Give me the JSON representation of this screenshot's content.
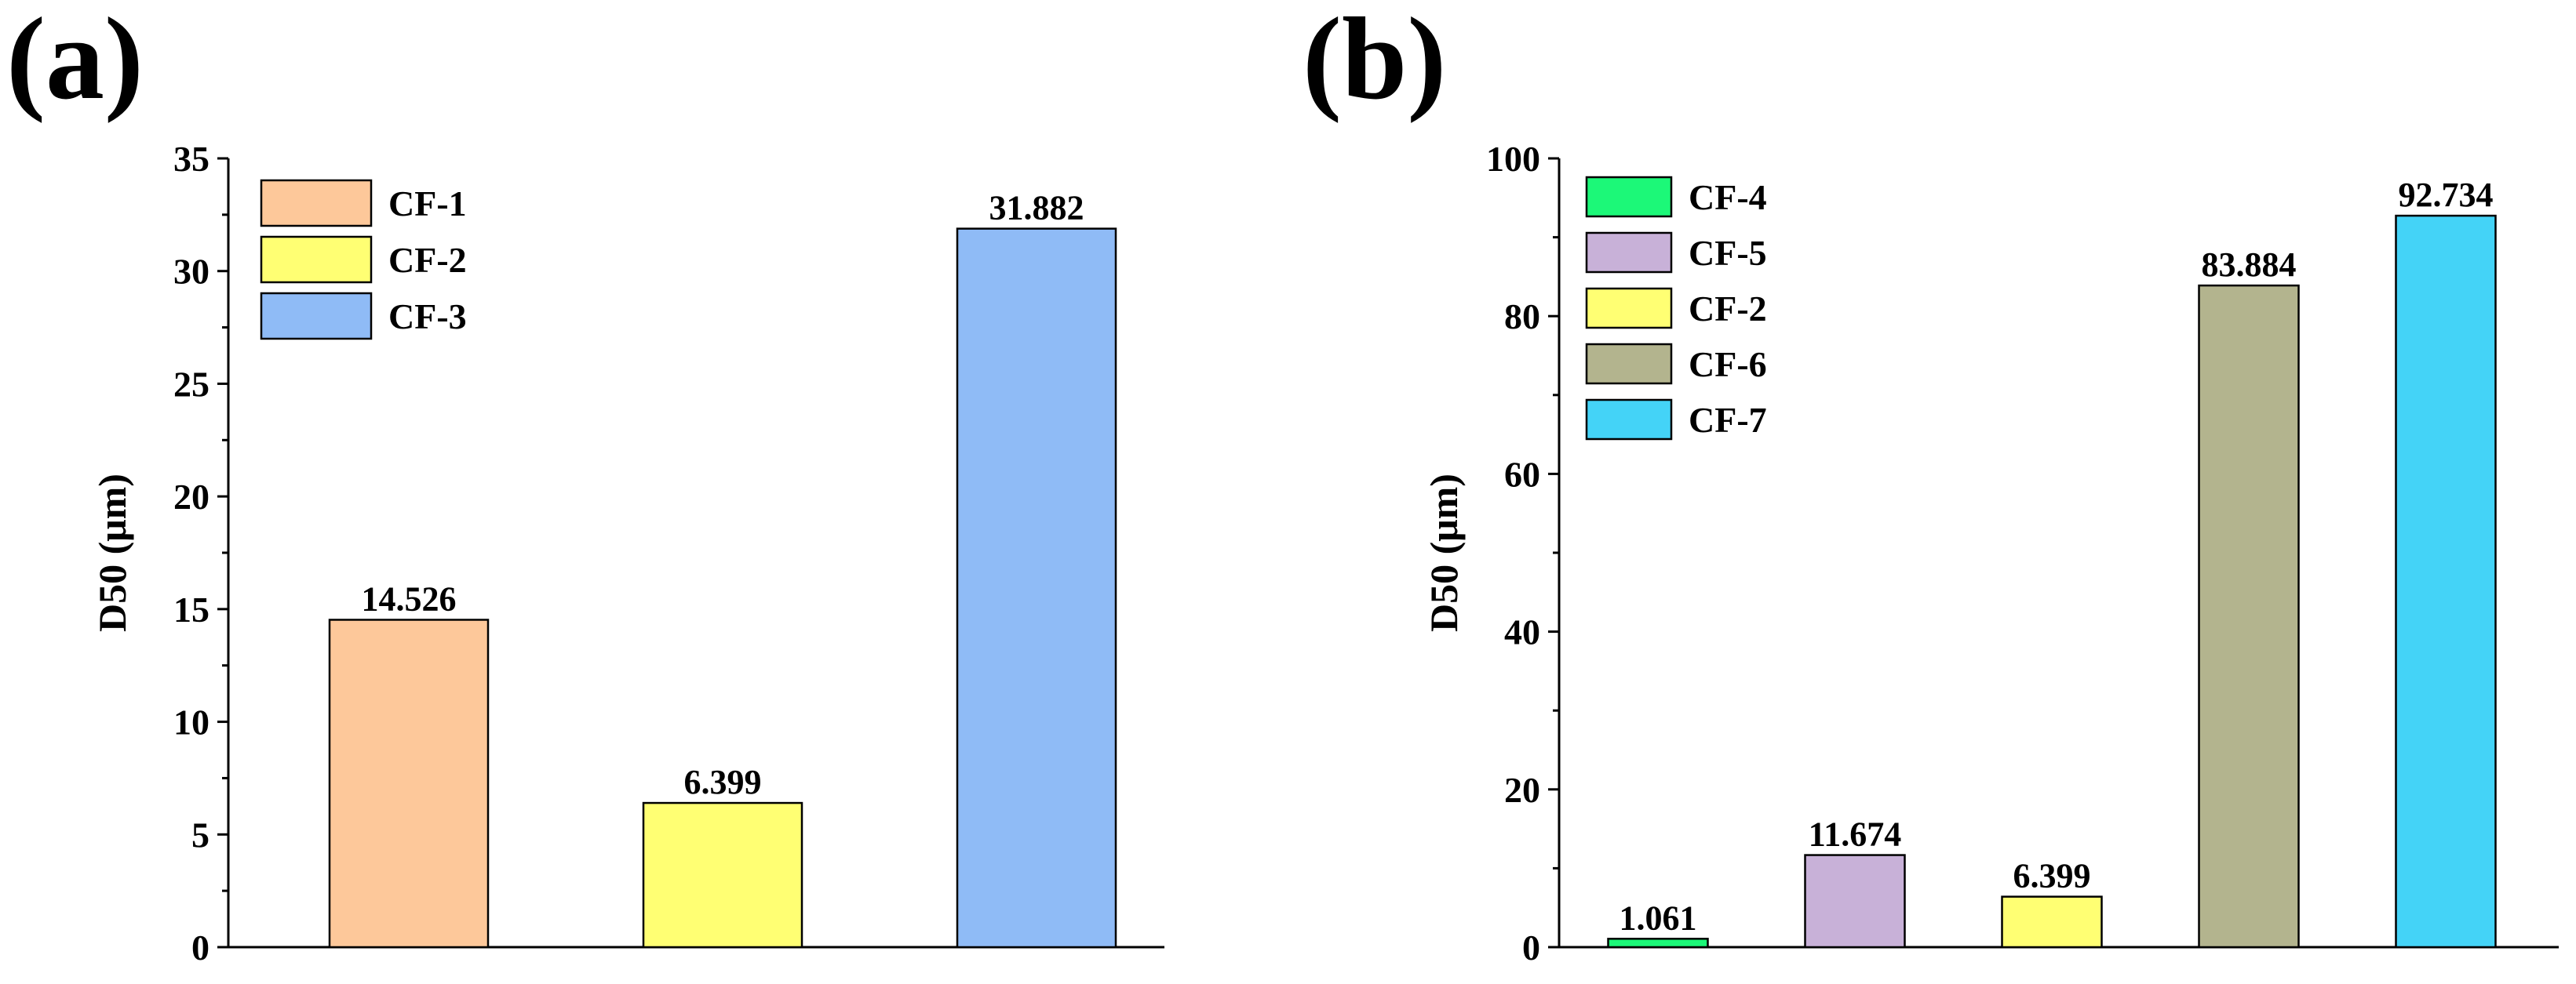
{
  "chart_data": [
    {
      "type": "bar",
      "panel_label": "(a)",
      "categories": [
        "CF-1",
        "CF-2",
        "CF-3"
      ],
      "values": [
        14.526,
        6.399,
        31.882
      ],
      "value_labels": [
        "14.526",
        "6.399",
        "31.882"
      ],
      "colors": [
        "#FDC89A",
        "#FFFF73",
        "#8FBBF6"
      ],
      "title": "",
      "xlabel": "",
      "ylabel": "D50 (μm)",
      "ylim": [
        0,
        35
      ],
      "yticks": [
        0,
        5,
        10,
        15,
        20,
        25,
        30,
        35
      ],
      "ytick_labels": [
        "0",
        "5",
        "10",
        "15",
        "20",
        "25",
        "30",
        "35"
      ],
      "minor_ticks": true,
      "grid": false,
      "legend": {
        "position": "top-left",
        "entries": [
          "CF-1",
          "CF-2",
          "CF-3"
        ]
      }
    },
    {
      "type": "bar",
      "panel_label": "(b)",
      "categories": [
        "CF-4",
        "CF-5",
        "CF-2",
        "CF-6",
        "CF-7"
      ],
      "values": [
        1.061,
        11.674,
        6.399,
        83.884,
        92.734
      ],
      "value_labels": [
        "1.061",
        "11.674",
        "6.399",
        "83.884",
        "92.734"
      ],
      "colors": [
        "#1CF878",
        "#C8B1D8",
        "#FFFF73",
        "#B3B48E",
        "#44D3F7"
      ],
      "title": "",
      "xlabel": "",
      "ylabel": "D50 (μm)",
      "ylim": [
        0,
        100
      ],
      "yticks": [
        0,
        20,
        40,
        60,
        80,
        100
      ],
      "ytick_labels": [
        "0",
        "20",
        "40",
        "60",
        "80",
        "100"
      ],
      "minor_ticks": true,
      "grid": false,
      "legend": {
        "position": "top-left",
        "entries": [
          "CF-4",
          "CF-5",
          "CF-2",
          "CF-6",
          "CF-7"
        ]
      }
    }
  ]
}
